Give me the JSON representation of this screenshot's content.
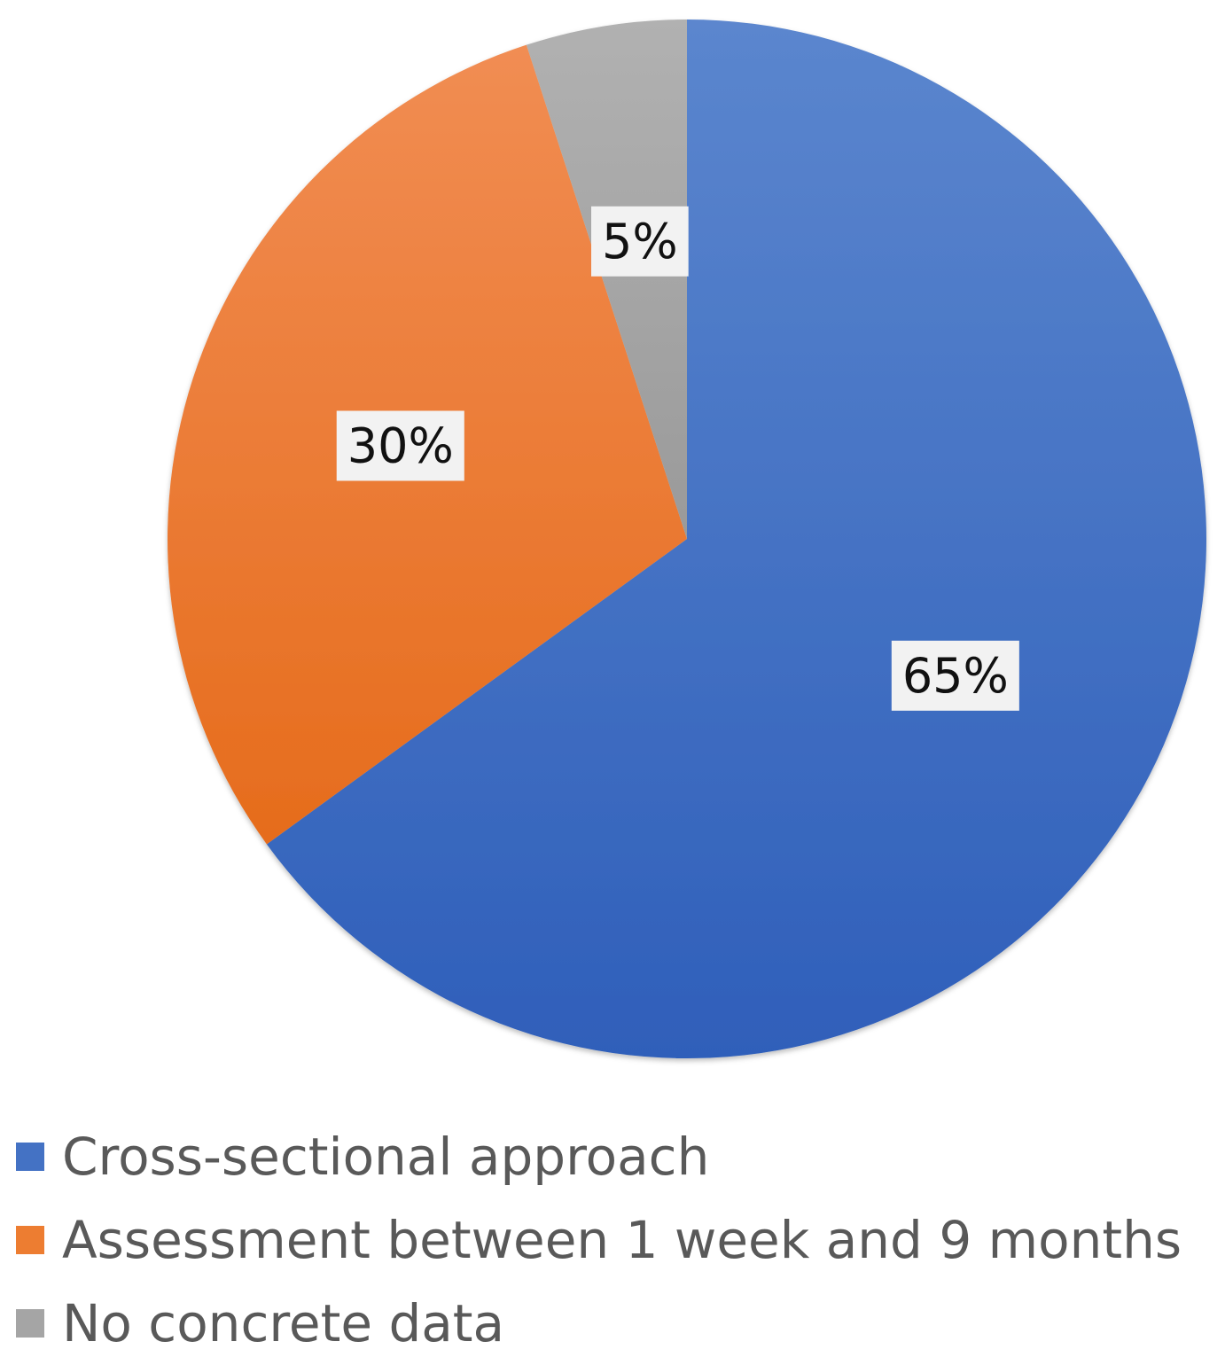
{
  "chart_data": {
    "type": "pie",
    "title": "",
    "slices": [
      {
        "label": "Cross-sectional approach",
        "value": 65,
        "display": "65%",
        "color": "#4472C4",
        "color_light": "#5B86CE",
        "color_dark": "#2F5FBA"
      },
      {
        "label": "Assessment between 1 week and 9 months",
        "value": 30,
        "display": "30%",
        "color": "#ED7D31",
        "color_light": "#F18D53",
        "color_dark": "#E66C1C"
      },
      {
        "label": "No concrete data",
        "value": 5,
        "display": "5%",
        "color": "#A5A5A5",
        "color_light": "#B1B1B1",
        "color_dark": "#9A9A9A"
      }
    ],
    "start_angle": "12 o'clock",
    "direction": "clockwise",
    "legend_position": "bottom-left",
    "data_labels": "inside, white boxed"
  }
}
